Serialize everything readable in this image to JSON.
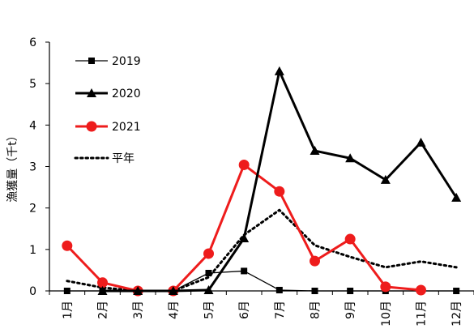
{
  "chart_data": {
    "type": "line",
    "title": "",
    "xlabel": "",
    "ylabel": "漁獲量（千t）",
    "ylim": [
      0,
      6
    ],
    "yticks": [
      "0",
      "1",
      "2",
      "3",
      "4",
      "5",
      "6"
    ],
    "categories": [
      "1月",
      "2月",
      "3月",
      "4月",
      "5月",
      "6月",
      "7月",
      "8月",
      "9月",
      "10月",
      "11月",
      "12月"
    ],
    "legend_position": "top-left",
    "grid": false,
    "series": [
      {
        "name": "2019",
        "color": "#000000",
        "marker": "square",
        "line": "thin",
        "values": [
          0.0,
          0.0,
          0.0,
          0.0,
          0.43,
          0.48,
          0.02,
          0.0,
          0.0,
          0.0,
          0.0,
          0.0
        ]
      },
      {
        "name": "2020",
        "color": "#000000",
        "marker": "triangle",
        "line": "thick",
        "values": [
          null,
          0.0,
          0.0,
          0.0,
          0.02,
          1.27,
          5.3,
          3.38,
          3.2,
          2.68,
          3.58,
          2.25
        ]
      },
      {
        "name": "2021",
        "color": "#ee1c1c",
        "marker": "circle",
        "line": "thick",
        "values": [
          1.09,
          0.2,
          0.0,
          0.0,
          0.9,
          3.04,
          2.4,
          0.72,
          1.25,
          0.1,
          0.02,
          null
        ]
      },
      {
        "name": "平年",
        "color": "#000000",
        "marker": "none",
        "line": "dotted",
        "values": [
          0.24,
          0.08,
          0.0,
          0.0,
          0.33,
          1.35,
          1.95,
          1.1,
          0.82,
          0.57,
          0.71,
          0.57
        ]
      }
    ]
  }
}
